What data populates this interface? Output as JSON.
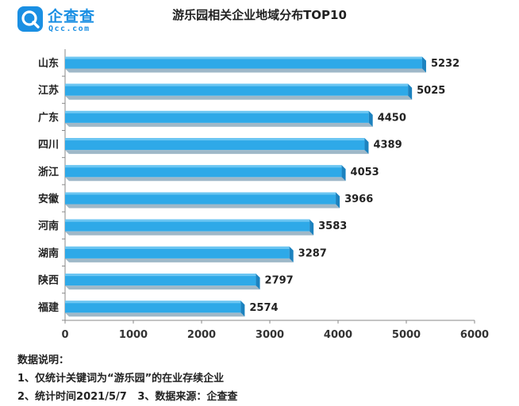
{
  "logo": {
    "name": "企查查",
    "domain": "Qcc.com"
  },
  "chart_data": {
    "type": "bar",
    "orientation": "horizontal",
    "title": "游乐园相关企业地域分布TOP10",
    "categories": [
      "山东",
      "江苏",
      "广东",
      "四川",
      "浙江",
      "安徽",
      "河南",
      "湖南",
      "陕西",
      "福建"
    ],
    "values": [
      5232,
      5025,
      4450,
      4389,
      4053,
      3966,
      3583,
      3287,
      2797,
      2574
    ],
    "xlim": [
      0,
      6000
    ],
    "xticks": [
      "0",
      "1000",
      "2000",
      "3000",
      "4000",
      "5000",
      "6000"
    ],
    "bar_color": "#2ea9e8",
    "grid": false
  },
  "notes": {
    "heading": "数据说明：",
    "line1": "1、仅统计关键词为“游乐园”的在业存续企业",
    "line2": "2、统计时间2021/5/7   3、数据来源：企查查"
  }
}
